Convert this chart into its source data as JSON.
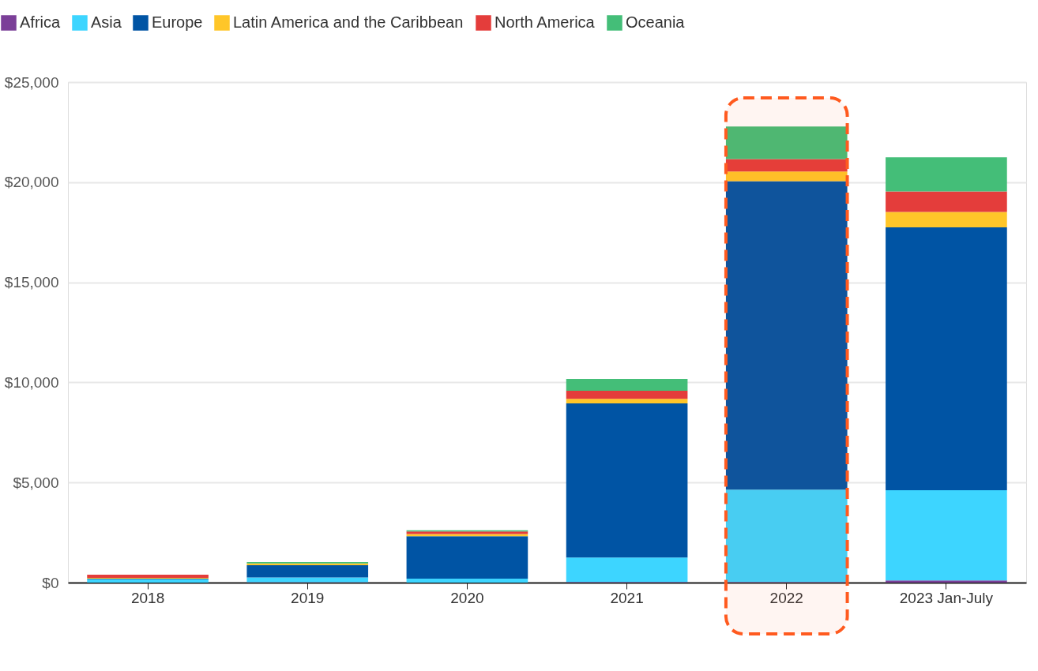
{
  "chart_data": {
    "type": "bar",
    "stacked": true,
    "categories": [
      "2018",
      "2019",
      "2020",
      "2021",
      "2022",
      "2023 Jan-July"
    ],
    "series": [
      {
        "name": "Africa",
        "color": "#7b3f98",
        "values": [
          0,
          20,
          0,
          30,
          30,
          110
        ]
      },
      {
        "name": "Asia",
        "color": "#3dd5ff",
        "values": [
          170,
          240,
          200,
          1220,
          4610,
          4500
        ]
      },
      {
        "name": "Europe",
        "color": "#0054a4",
        "values": [
          30,
          610,
          2120,
          7700,
          15410,
          13130
        ]
      },
      {
        "name": "Latin America and the Caribbean",
        "color": "#ffc629",
        "values": [
          40,
          90,
          110,
          230,
          480,
          770
        ]
      },
      {
        "name": "North America",
        "color": "#e43d3b",
        "values": [
          150,
          null,
          120,
          400,
          630,
          1030
        ]
      },
      {
        "name": "Oceania",
        "color": "#44be78",
        "values": [
          null,
          70,
          60,
          590,
          1620,
          1700
        ]
      }
    ],
    "ylim": [
      0,
      25000
    ],
    "yticks": [
      {
        "value": 0,
        "label": "$0"
      },
      {
        "value": 5000,
        "label": "$5,000"
      },
      {
        "value": 10000,
        "label": "$10,000"
      },
      {
        "value": 15000,
        "label": "$15,000"
      },
      {
        "value": 20000,
        "label": "$20,000"
      },
      {
        "value": 25000,
        "label": "$25,000"
      }
    ],
    "grid": "y",
    "legend": "top left",
    "bands": [
      {
        "axis": "x",
        "from": "2022",
        "to": "2022",
        "color": "#ff5a1f"
      }
    ]
  }
}
